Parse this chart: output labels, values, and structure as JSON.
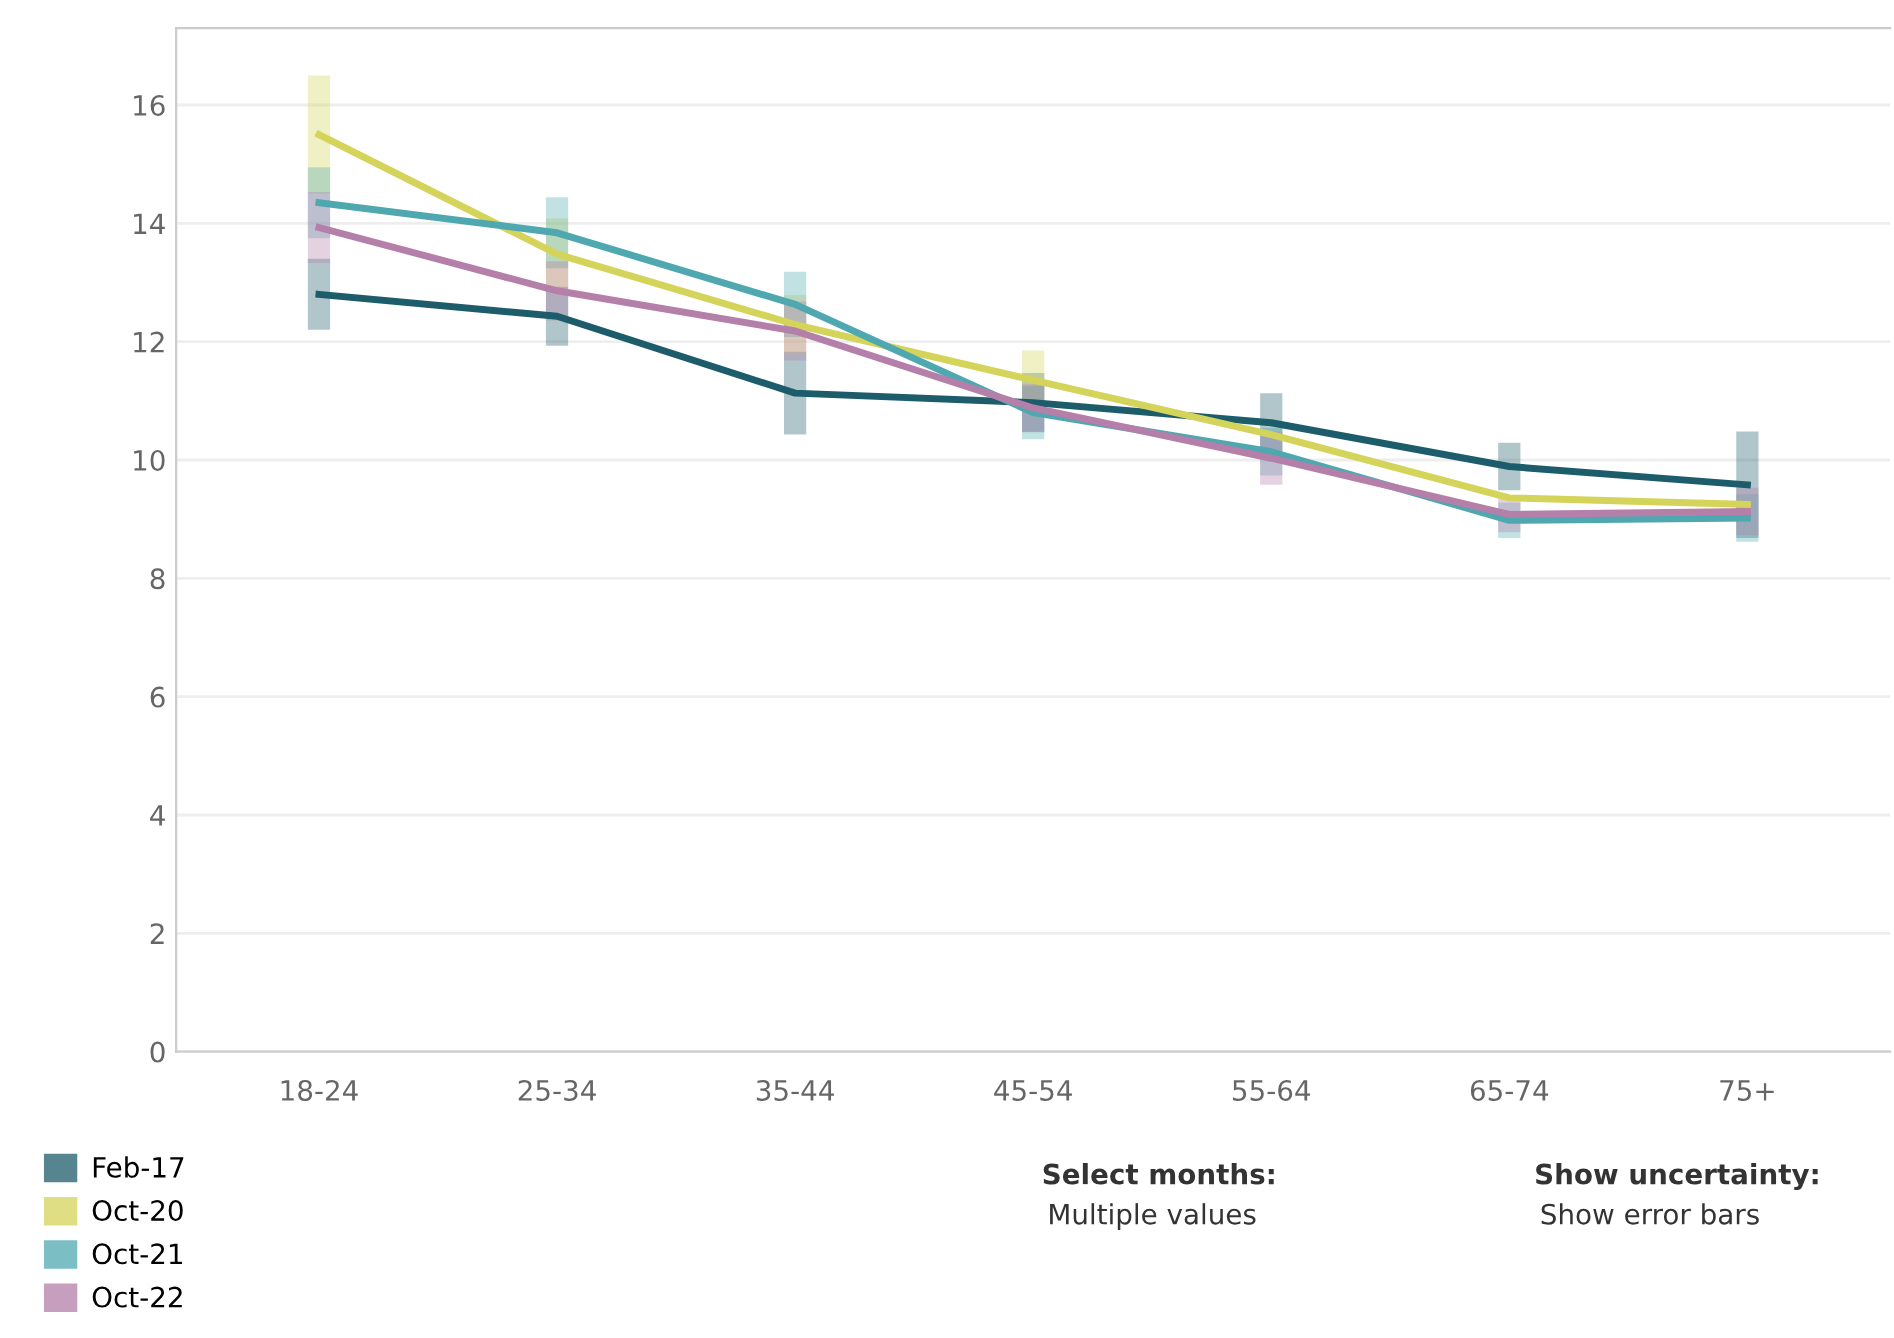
{
  "chart_data": {
    "type": "line",
    "categories": [
      "18-24",
      "25-34",
      "35-44",
      "45-54",
      "55-64",
      "65-74",
      "75+"
    ],
    "series": [
      {
        "name": "Feb-17",
        "color": "#1d5c6b",
        "values": [
          12.8,
          12.43,
          11.13,
          10.97,
          10.63,
          9.89,
          9.58
        ],
        "errors": [
          0.6,
          0.5,
          0.7,
          0.5,
          0.5,
          0.4,
          0.9
        ]
      },
      {
        "name": "Oct-20",
        "color": "#d4d35a",
        "values": [
          15.5,
          13.48,
          12.29,
          11.35,
          10.43,
          9.36,
          9.25
        ],
        "errors": [
          1.0,
          0.6,
          0.5,
          0.5,
          null,
          null,
          null
        ]
      },
      {
        "name": "Oct-21",
        "color": "#4fa8b0",
        "values": [
          14.35,
          13.84,
          12.63,
          10.8,
          10.14,
          8.98,
          9.02
        ],
        "errors": [
          0.6,
          0.6,
          0.55,
          0.45,
          0.4,
          0.3,
          0.4
        ]
      },
      {
        "name": "Oct-22",
        "color": "#b47fa8",
        "values": [
          13.93,
          12.86,
          12.18,
          10.88,
          10.03,
          9.08,
          9.13
        ],
        "errors": [
          0.6,
          0.5,
          0.5,
          0.4,
          0.45,
          0.3,
          0.4
        ]
      }
    ],
    "ylim": [
      0,
      17.3
    ],
    "yticks": [
      0,
      2,
      4,
      6,
      8,
      10,
      12,
      14,
      16
    ],
    "grid": "y",
    "legend": "bottom left",
    "marker": "none",
    "line_style": "solid",
    "annotations": [
      "Select months:",
      "Multiple values",
      "Show uncertainty:",
      "Show error bars"
    ]
  }
}
